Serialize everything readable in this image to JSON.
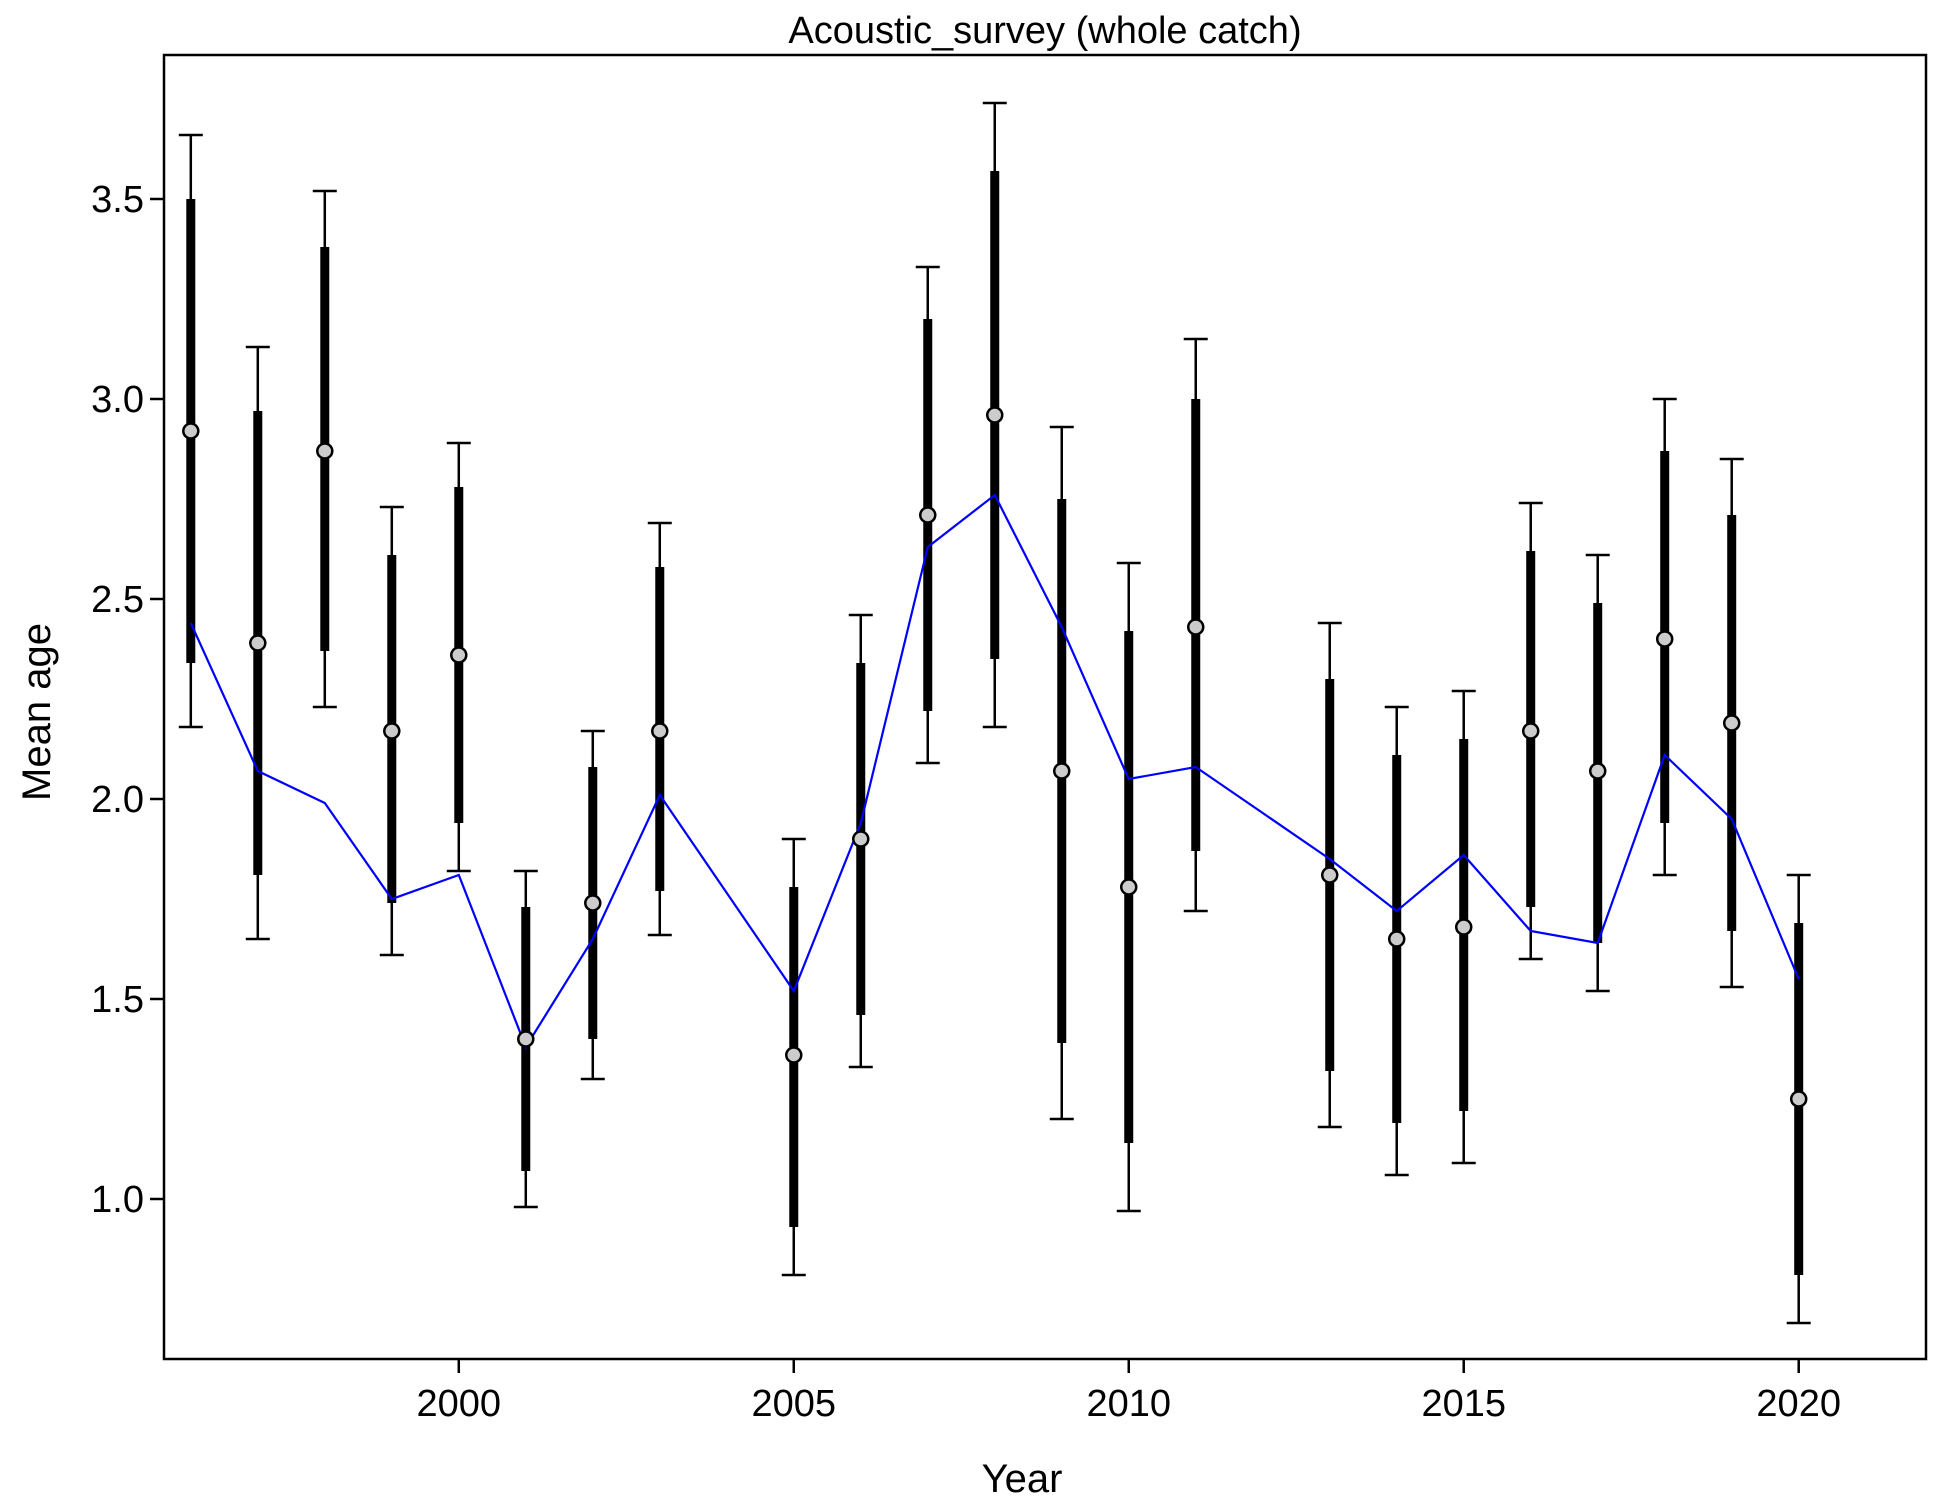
{
  "chart_data": {
    "type": "line",
    "title": "Acoustic_survey (whole catch)",
    "xlabel": "Year",
    "ylabel": "Mean age",
    "xlim": [
      1995.6,
      2021.9
    ],
    "ylim": [
      0.6,
      3.86
    ],
    "x_ticks": [
      2000,
      2005,
      2010,
      2015,
      2020
    ],
    "x_tick_labels": [
      "2000",
      "2005",
      "2010",
      "2015",
      "2020"
    ],
    "y_ticks": [
      1.0,
      1.5,
      2.0,
      2.5,
      3.0,
      3.5
    ],
    "y_tick_labels": [
      "1.0",
      "1.5",
      "2.0",
      "2.5",
      "3.0",
      "3.5"
    ],
    "grid": false,
    "legend": "none",
    "colors": {
      "fit_line": "#0000ff",
      "observed_fill": "#cccccc",
      "bars": "#000000"
    },
    "observed": {
      "x": [
        1996,
        1997,
        1998,
        1999,
        2000,
        2001,
        2002,
        2003,
        2005,
        2006,
        2007,
        2008,
        2009,
        2010,
        2011,
        2013,
        2014,
        2015,
        2016,
        2017,
        2018,
        2019,
        2020
      ],
      "y": [
        2.92,
        2.39,
        2.87,
        2.17,
        2.36,
        1.4,
        1.74,
        2.17,
        1.36,
        1.9,
        2.71,
        2.96,
        2.07,
        1.78,
        2.43,
        1.81,
        1.65,
        1.68,
        2.17,
        2.07,
        2.4,
        2.19,
        1.25
      ],
      "inner_lo": [
        2.34,
        1.81,
        2.37,
        1.74,
        1.94,
        1.07,
        1.4,
        1.77,
        0.93,
        1.46,
        2.22,
        2.35,
        1.39,
        1.14,
        1.87,
        1.32,
        1.19,
        1.22,
        1.73,
        1.64,
        1.94,
        1.67,
        0.81
      ],
      "inner_hi": [
        3.5,
        2.97,
        3.38,
        2.61,
        2.78,
        1.73,
        2.08,
        2.58,
        1.78,
        2.34,
        3.2,
        3.57,
        2.75,
        2.42,
        3.0,
        2.3,
        2.11,
        2.15,
        2.62,
        2.49,
        2.87,
        2.71,
        1.69
      ],
      "outer_lo": [
        2.18,
        1.65,
        2.23,
        1.61,
        1.82,
        0.98,
        1.3,
        1.66,
        0.81,
        1.33,
        2.09,
        2.18,
        1.2,
        0.97,
        1.72,
        1.18,
        1.06,
        1.09,
        1.6,
        1.52,
        1.81,
        1.53,
        0.69
      ],
      "outer_hi": [
        3.66,
        3.13,
        3.52,
        2.73,
        2.89,
        1.82,
        2.17,
        2.69,
        1.9,
        2.46,
        3.33,
        3.74,
        2.93,
        2.59,
        3.15,
        2.44,
        2.23,
        2.27,
        2.74,
        2.61,
        3.0,
        2.85,
        1.81
      ]
    },
    "expected": {
      "x": [
        1996,
        1997,
        1998,
        1999,
        2000,
        2001,
        2002,
        2003,
        2005,
        2006,
        2007,
        2008,
        2009,
        2010,
        2011,
        2013,
        2014,
        2015,
        2016,
        2017,
        2018,
        2019,
        2020
      ],
      "y": [
        2.44,
        2.07,
        1.99,
        1.75,
        1.81,
        1.38,
        1.65,
        2.01,
        1.52,
        1.94,
        2.63,
        2.76,
        2.43,
        2.05,
        2.08,
        1.85,
        1.72,
        1.86,
        1.67,
        1.64,
        2.11,
        1.95,
        1.55
      ]
    }
  }
}
